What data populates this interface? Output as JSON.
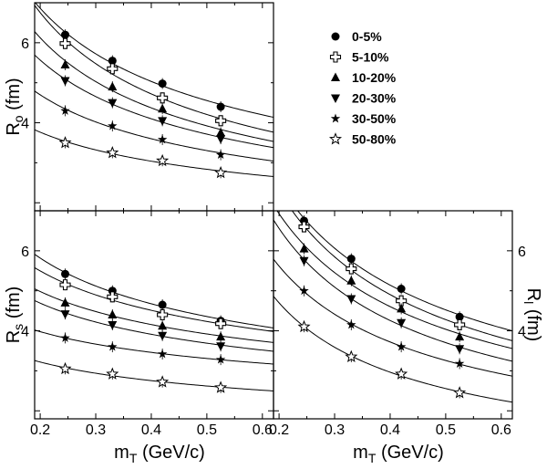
{
  "chart_data": [
    {
      "type": "scatter",
      "panel": "Ro",
      "ylabel": "R",
      "ylabel_sub": "o",
      "ylabel_unit": "(fm)",
      "ylabel_side": "left",
      "xlabel": "",
      "xlim": [
        0.19,
        0.62
      ],
      "ylim": [
        1.8,
        7.0
      ],
      "yticks": [
        4,
        6
      ],
      "x": [
        0.245,
        0.33,
        0.42,
        0.525
      ],
      "series": [
        {
          "name": "0-5%",
          "marker": "circle",
          "values": [
            6.2,
            5.55,
            4.98,
            4.4
          ]
        },
        {
          "name": "5-10%",
          "marker": "cross-open",
          "values": [
            5.98,
            5.35,
            4.62,
            4.05
          ]
        },
        {
          "name": "10-20%",
          "marker": "triangle-up",
          "values": [
            5.45,
            4.9,
            4.35,
            3.75
          ]
        },
        {
          "name": "20-30%",
          "marker": "triangle-down",
          "values": [
            5.05,
            4.5,
            4.05,
            3.6
          ]
        },
        {
          "name": "30-50%",
          "marker": "star",
          "values": [
            4.3,
            3.92,
            3.58,
            3.2
          ]
        },
        {
          "name": "50-80%",
          "marker": "star-open",
          "values": [
            3.5,
            3.25,
            3.05,
            2.75
          ]
        }
      ]
    },
    {
      "type": "scatter",
      "panel": "Rs",
      "ylabel": "R",
      "ylabel_sub": "s",
      "ylabel_unit": "(fm)",
      "ylabel_side": "left",
      "xlabel": "m",
      "xlabel_sub": "T",
      "xlabel_unit": "(GeV/c)",
      "xlim": [
        0.19,
        0.62
      ],
      "ylim": [
        1.8,
        7.0
      ],
      "xticks": [
        "0.2",
        "0.3",
        "0.4",
        "0.5",
        "0.6"
      ],
      "yticks": [
        4,
        6
      ],
      "x": [
        0.245,
        0.33,
        0.42,
        0.525
      ],
      "series": [
        {
          "name": "0-5%",
          "marker": "circle",
          "values": [
            5.42,
            5.0,
            4.65,
            4.25
          ]
        },
        {
          "name": "5-10%",
          "marker": "cross-open",
          "values": [
            5.15,
            4.85,
            4.4,
            4.18
          ]
        },
        {
          "name": "10-20%",
          "marker": "triangle-up",
          "values": [
            4.7,
            4.4,
            4.12,
            3.85
          ]
        },
        {
          "name": "20-30%",
          "marker": "triangle-down",
          "values": [
            4.42,
            4.15,
            3.88,
            3.62
          ]
        },
        {
          "name": "30-50%",
          "marker": "star",
          "values": [
            3.82,
            3.6,
            3.42,
            3.28
          ]
        },
        {
          "name": "50-80%",
          "marker": "star-open",
          "values": [
            3.05,
            2.92,
            2.72,
            2.58
          ]
        }
      ]
    },
    {
      "type": "scatter",
      "panel": "Rl",
      "ylabel": "R",
      "ylabel_sub": "l",
      "ylabel_unit": "(fm)",
      "ylabel_side": "right",
      "xlabel": "m",
      "xlabel_sub": "T",
      "xlabel_unit": "(GeV/c)",
      "xlim": [
        0.19,
        0.62
      ],
      "ylim": [
        1.8,
        7.0
      ],
      "xticks": [
        "0.2",
        "0.3",
        "0.4",
        "0.5",
        "0.6"
      ],
      "yticks": [
        4,
        6
      ],
      "x": [
        0.245,
        0.33,
        0.42,
        0.525
      ],
      "series": [
        {
          "name": "0-5%",
          "marker": "circle",
          "values": [
            6.75,
            5.8,
            5.05,
            4.35
          ]
        },
        {
          "name": "5-10%",
          "marker": "cross-open",
          "values": [
            6.6,
            5.55,
            4.75,
            4.15
          ]
        },
        {
          "name": "10-20%",
          "marker": "triangle-up",
          "values": [
            6.05,
            5.25,
            4.55,
            3.85
          ]
        },
        {
          "name": "20-30%",
          "marker": "triangle-down",
          "values": [
            5.75,
            4.8,
            4.2,
            3.55
          ]
        },
        {
          "name": "30-50%",
          "marker": "star",
          "values": [
            5.0,
            4.15,
            3.6,
            3.18
          ]
        },
        {
          "name": "50-80%",
          "marker": "star-open",
          "values": [
            4.1,
            3.35,
            2.92,
            2.45
          ]
        }
      ]
    }
  ],
  "legend": {
    "placement": "top-right",
    "entries": [
      {
        "label": "0-5%",
        "marker": "circle"
      },
      {
        "label": "5-10%",
        "marker": "cross-open"
      },
      {
        "label": "10-20%",
        "marker": "triangle-up"
      },
      {
        "label": "20-30%",
        "marker": "triangle-down"
      },
      {
        "label": "30-50%",
        "marker": "star"
      },
      {
        "label": "50-80%",
        "marker": "star-open"
      }
    ]
  }
}
